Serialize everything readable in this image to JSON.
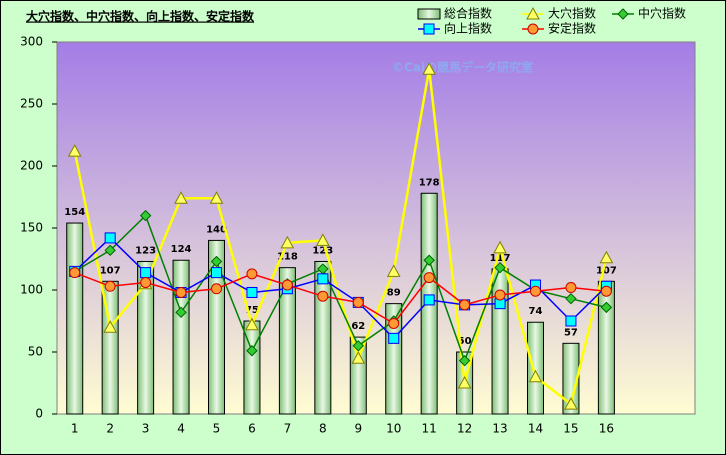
{
  "chart_data": {
    "type": "combo",
    "title": "大穴指数、中穴指数、向上指数、安定指数",
    "watermark": "©Caiの競馬データ研究室",
    "categories": [
      "1",
      "2",
      "3",
      "4",
      "5",
      "6",
      "7",
      "8",
      "9",
      "10",
      "11",
      "12",
      "13",
      "14",
      "15",
      "16",
      null,
      null
    ],
    "ylim": [
      0,
      300
    ],
    "yticks": [
      0,
      50,
      100,
      150,
      200,
      250,
      300
    ],
    "series": [
      {
        "name": "総合指数",
        "type": "bar",
        "color": "#b5e3ad",
        "values": [
          154,
          107,
          123,
          124,
          140,
          75,
          118,
          123,
          62,
          89,
          178,
          50,
          117,
          74,
          57,
          107,
          null,
          null
        ]
      },
      {
        "name": "大穴指数",
        "type": "line",
        "marker": "triangle",
        "color": "#ffff00",
        "marker_color": "#ffff66",
        "values": [
          212,
          70,
          105,
          174,
          174,
          72,
          138,
          140,
          45,
          115,
          278,
          25,
          134,
          30,
          8,
          126,
          null,
          null
        ]
      },
      {
        "name": "中穴指数",
        "type": "line",
        "marker": "diamond",
        "color": "#008000",
        "marker_color": "#33cc33",
        "values": [
          115,
          132,
          160,
          82,
          123,
          51,
          105,
          117,
          55,
          75,
          124,
          43,
          118,
          100,
          93,
          86,
          null,
          null
        ]
      },
      {
        "name": "向上指数",
        "type": "line",
        "marker": "square",
        "color": "#0000ff",
        "marker_color": "#00ffff",
        "values": [
          115,
          142,
          114,
          98,
          114,
          98,
          101,
          109,
          90,
          61,
          92,
          88,
          89,
          104,
          75,
          103,
          null,
          null
        ]
      },
      {
        "name": "安定指数",
        "type": "line",
        "marker": "circle",
        "color": "#ff0000",
        "marker_color": "#ff9933",
        "values": [
          114,
          103,
          106,
          98,
          101,
          113,
          104,
          95,
          90,
          73,
          110,
          88,
          96,
          99,
          102,
          99,
          null,
          null
        ]
      }
    ]
  }
}
